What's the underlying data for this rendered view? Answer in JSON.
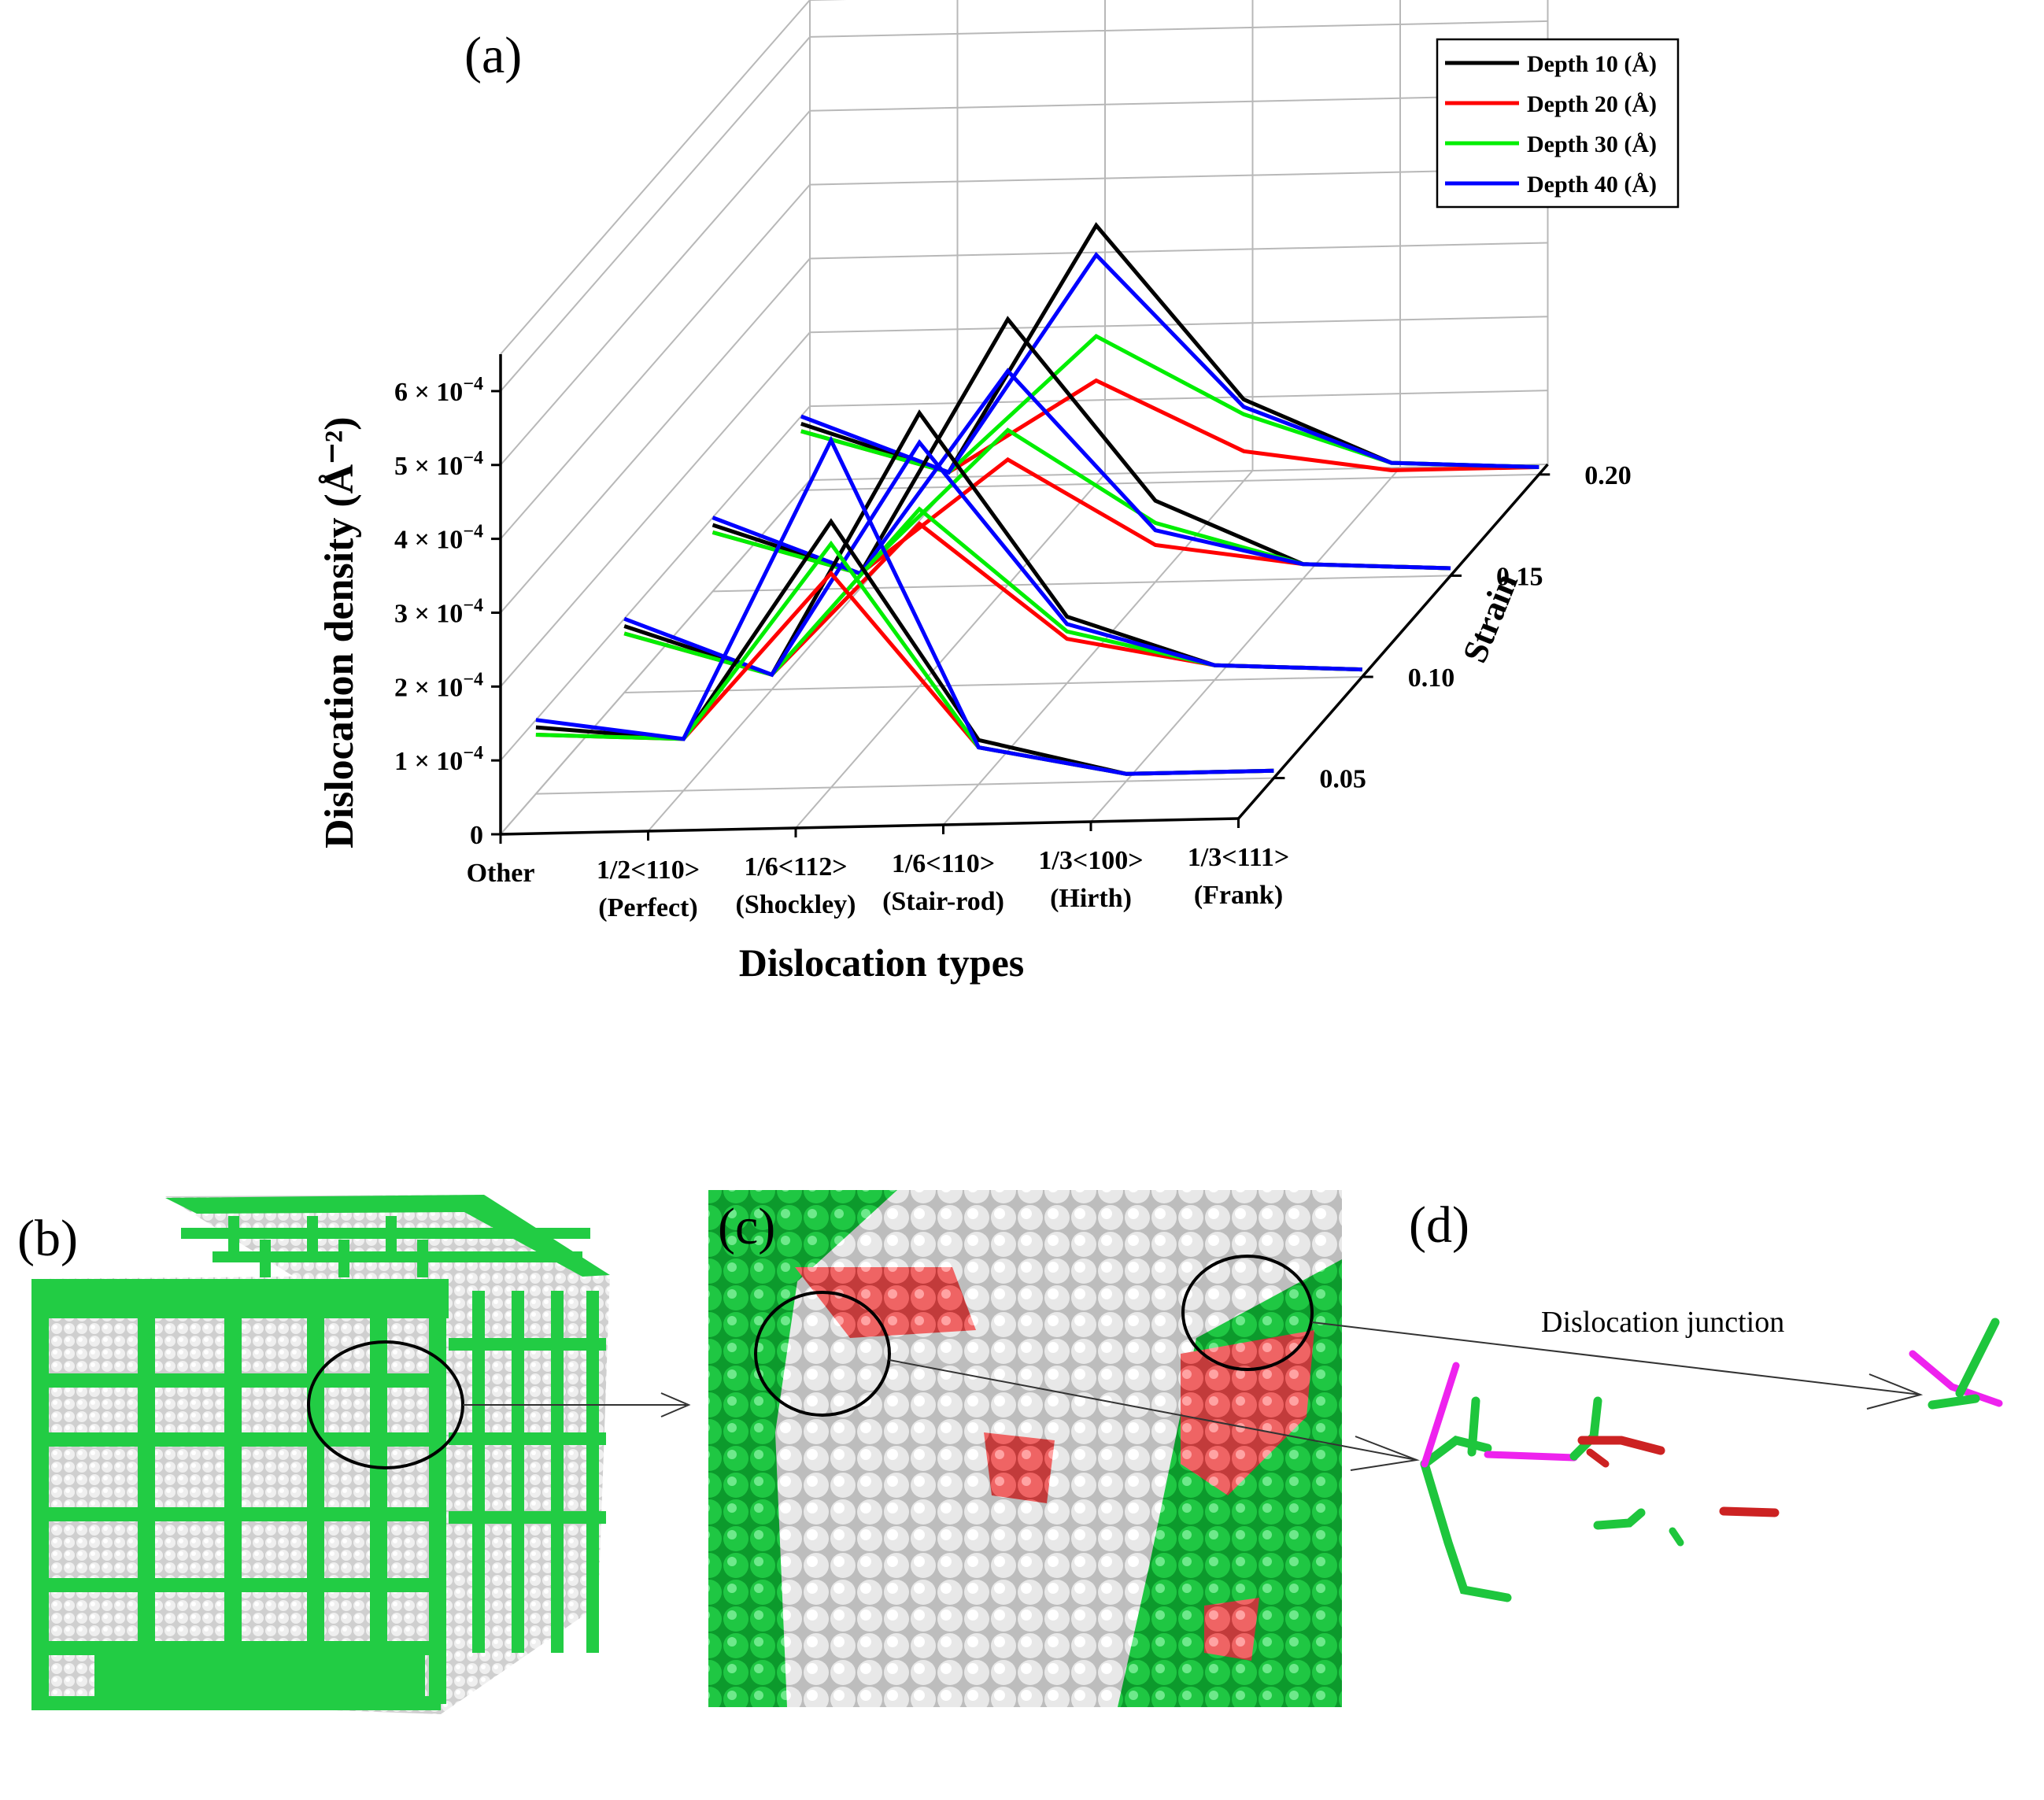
{
  "panel_labels": {
    "a": "(a)",
    "b": "(b)",
    "c": "(c)",
    "d": "(d)"
  },
  "annotation": "Dislocation junction",
  "chart_data": {
    "type": "line",
    "projection": "3d-waterfall",
    "xlabel": "Dislocation types",
    "ylabel": "Dislocation density (Å⁻²)",
    "zlabel": "Strain",
    "categories": [
      "Other",
      "1/2<110>",
      "1/6<112>",
      "1/6<110>",
      "1/3<100>",
      "1/3<111>"
    ],
    "category_sublabels": [
      "",
      "(Perfect)",
      "(Shockley)",
      "(Stair-rod)",
      "(Hirth)",
      "(Frank)"
    ],
    "y_ticks": [
      {
        "value": 0,
        "base": "0",
        "exp": ""
      },
      {
        "value": 0.0001,
        "base": "1 × 10",
        "exp": "−4"
      },
      {
        "value": 0.0002,
        "base": "2 × 10",
        "exp": "−4"
      },
      {
        "value": 0.0003,
        "base": "3 × 10",
        "exp": "−4"
      },
      {
        "value": 0.0004,
        "base": "4 × 10",
        "exp": "−4"
      },
      {
        "value": 0.0005,
        "base": "5 × 10",
        "exp": "−4"
      },
      {
        "value": 0.0006,
        "base": "6 × 10",
        "exp": "−4"
      }
    ],
    "ylim": [
      0,
      0.00065
    ],
    "z_ticks": [
      0.05,
      0.1,
      0.15,
      0.2
    ],
    "z_tick_labels": [
      "0.05",
      "0.10",
      "0.15",
      "0.20"
    ],
    "strains": [
      0.05,
      0.1,
      0.15,
      0.2
    ],
    "legend_position": "top-right",
    "series": [
      {
        "name": "Depth 10 (Å)",
        "color": "#000000",
        "values": {
          "0.05": [
            9e-05,
            7e-05,
            0.00036,
            6e-05,
            1e-05,
            1e-05
          ],
          "0.10": [
            9e-05,
            2e-05,
            0.00037,
            9e-05,
            2e-05,
            1e-05
          ],
          "0.15": [
            9e-05,
            2e-05,
            0.00036,
            0.00011,
            2e-05,
            1e-05
          ],
          "0.20": [
            9e-05,
            2e-05,
            0.00035,
            0.00011,
            2e-05,
            1e-05
          ]
        }
      },
      {
        "name": "Depth 20 (Å)",
        "color": "#ff0000",
        "values": {
          "0.05": [
            8e-05,
            7e-05,
            0.00029,
            5e-05,
            1e-05,
            1e-05
          ],
          "0.10": [
            8e-05,
            2e-05,
            0.00022,
            6e-05,
            2e-05,
            1e-05
          ],
          "0.15": [
            8e-05,
            2e-05,
            0.00017,
            5e-05,
            2e-05,
            1e-05
          ],
          "0.20": [
            8e-05,
            2e-05,
            0.00014,
            4e-05,
            1e-05,
            1e-05
          ]
        }
      },
      {
        "name": "Depth 30 (Å)",
        "color": "#00ee00",
        "values": {
          "0.05": [
            8e-05,
            7e-05,
            0.00033,
            5e-05,
            1e-05,
            1e-05
          ],
          "0.10": [
            8e-05,
            2e-05,
            0.00024,
            7e-05,
            2e-05,
            1e-05
          ],
          "0.15": [
            8e-05,
            2e-05,
            0.00021,
            8e-05,
            2e-05,
            1e-05
          ],
          "0.20": [
            8e-05,
            2e-05,
            0.0002,
            9e-05,
            2e-05,
            1e-05
          ]
        }
      },
      {
        "name": "Depth 40 (Å)",
        "color": "#0000ff",
        "values": {
          "0.05": [
            0.0001,
            7e-05,
            0.00047,
            5e-05,
            1e-05,
            1e-05
          ],
          "0.10": [
            0.0001,
            2e-05,
            0.00033,
            8e-05,
            2e-05,
            1e-05
          ],
          "0.15": [
            0.0001,
            2e-05,
            0.00029,
            7e-05,
            2e-05,
            1e-05
          ],
          "0.20": [
            0.0001,
            2e-05,
            0.00031,
            0.0001,
            2e-05,
            1e-05
          ]
        }
      }
    ]
  }
}
